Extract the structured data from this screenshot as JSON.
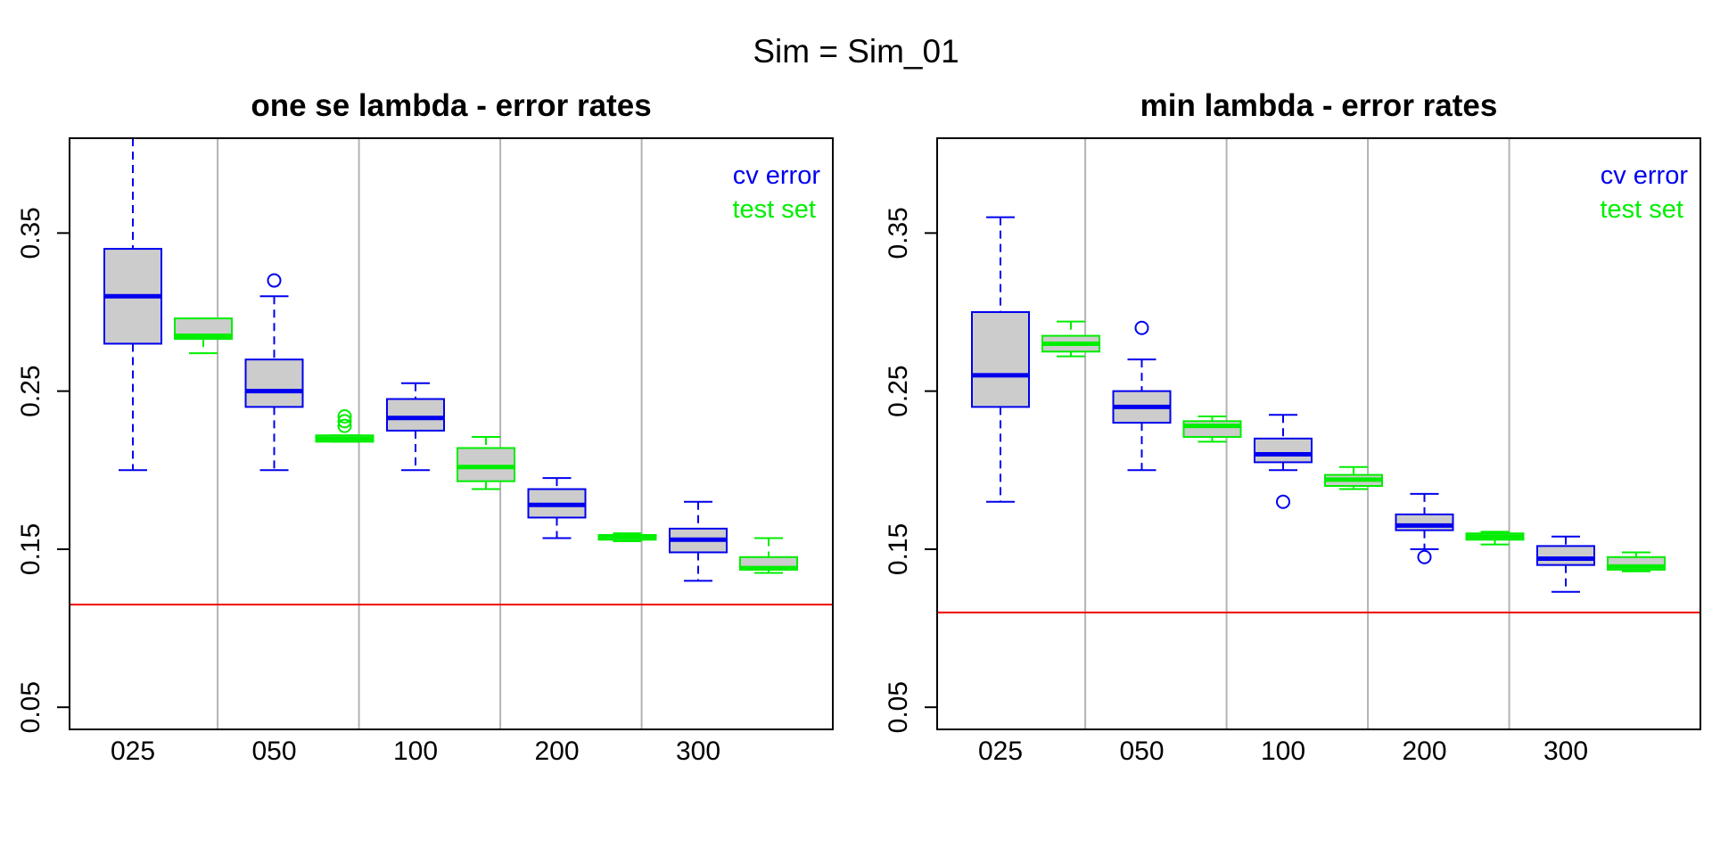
{
  "overall_title": "Sim = Sim_01",
  "colors": {
    "cv": "#0000ee",
    "test": "#00ee00",
    "box_fill": "#cccccc",
    "reference": "#ee0000",
    "separator": "#b3b3b3",
    "axis": "#000000"
  },
  "legend": {
    "cv_label": "cv error",
    "test_label": "test set",
    "position": "top-right"
  },
  "chart_data": [
    {
      "type": "boxplot",
      "title": "one se lambda - error rates",
      "xlabel": "",
      "ylabel": "",
      "ylim": [
        0.036,
        0.41
      ],
      "yticks": [
        "0.05",
        "0.15",
        "0.25",
        "0.35"
      ],
      "grid": false,
      "categories": [
        "025",
        "050",
        "100",
        "200",
        "300"
      ],
      "reference_line": 0.115,
      "series": [
        {
          "name": "cv error",
          "boxes": [
            {
              "min": 0.2,
              "q1": 0.28,
              "median": 0.31,
              "q3": 0.34,
              "max": 0.41,
              "outliers": []
            },
            {
              "min": 0.2,
              "q1": 0.24,
              "median": 0.25,
              "q3": 0.27,
              "max": 0.31,
              "outliers": [
                0.32
              ]
            },
            {
              "min": 0.2,
              "q1": 0.225,
              "median": 0.233,
              "q3": 0.245,
              "max": 0.255,
              "outliers": []
            },
            {
              "min": 0.157,
              "q1": 0.17,
              "median": 0.178,
              "q3": 0.188,
              "max": 0.195,
              "outliers": []
            },
            {
              "min": 0.13,
              "q1": 0.148,
              "median": 0.156,
              "q3": 0.163,
              "max": 0.18,
              "outliers": []
            }
          ]
        },
        {
          "name": "test set",
          "boxes": [
            {
              "min": 0.274,
              "q1": 0.283,
              "median": 0.285,
              "q3": 0.296,
              "max": 0.296,
              "outliers": []
            },
            {
              "min": 0.218,
              "q1": 0.218,
              "median": 0.22,
              "q3": 0.222,
              "max": 0.222,
              "outliers": [
                0.228,
                0.231,
                0.234
              ]
            },
            {
              "min": 0.188,
              "q1": 0.193,
              "median": 0.202,
              "q3": 0.214,
              "max": 0.221,
              "outliers": []
            },
            {
              "min": 0.155,
              "q1": 0.156,
              "median": 0.158,
              "q3": 0.159,
              "max": 0.16,
              "outliers": []
            },
            {
              "min": 0.135,
              "q1": 0.137,
              "median": 0.138,
              "q3": 0.145,
              "max": 0.157,
              "outliers": []
            }
          ]
        }
      ]
    },
    {
      "type": "boxplot",
      "title": "min lambda - error rates",
      "xlabel": "",
      "ylabel": "",
      "ylim": [
        0.036,
        0.41
      ],
      "yticks": [
        "0.05",
        "0.15",
        "0.25",
        "0.35"
      ],
      "grid": false,
      "categories": [
        "025",
        "050",
        "100",
        "200",
        "300"
      ],
      "reference_line": 0.11,
      "series": [
        {
          "name": "cv error",
          "boxes": [
            {
              "min": 0.18,
              "q1": 0.24,
              "median": 0.26,
              "q3": 0.3,
              "max": 0.36,
              "outliers": []
            },
            {
              "min": 0.2,
              "q1": 0.23,
              "median": 0.24,
              "q3": 0.25,
              "max": 0.27,
              "outliers": [
                0.29
              ]
            },
            {
              "min": 0.2,
              "q1": 0.205,
              "median": 0.21,
              "q3": 0.22,
              "max": 0.235,
              "outliers": [
                0.18
              ]
            },
            {
              "min": 0.15,
              "q1": 0.162,
              "median": 0.165,
              "q3": 0.172,
              "max": 0.185,
              "outliers": [
                0.145
              ]
            },
            {
              "min": 0.123,
              "q1": 0.14,
              "median": 0.144,
              "q3": 0.152,
              "max": 0.158,
              "outliers": []
            }
          ]
        },
        {
          "name": "test set",
          "boxes": [
            {
              "min": 0.272,
              "q1": 0.275,
              "median": 0.28,
              "q3": 0.285,
              "max": 0.294,
              "outliers": []
            },
            {
              "min": 0.218,
              "q1": 0.221,
              "median": 0.228,
              "q3": 0.231,
              "max": 0.234,
              "outliers": []
            },
            {
              "min": 0.188,
              "q1": 0.19,
              "median": 0.194,
              "q3": 0.197,
              "max": 0.202,
              "outliers": []
            },
            {
              "min": 0.153,
              "q1": 0.156,
              "median": 0.158,
              "q3": 0.16,
              "max": 0.161,
              "outliers": []
            },
            {
              "min": 0.136,
              "q1": 0.137,
              "median": 0.139,
              "q3": 0.145,
              "max": 0.148,
              "outliers": []
            }
          ]
        }
      ]
    }
  ]
}
